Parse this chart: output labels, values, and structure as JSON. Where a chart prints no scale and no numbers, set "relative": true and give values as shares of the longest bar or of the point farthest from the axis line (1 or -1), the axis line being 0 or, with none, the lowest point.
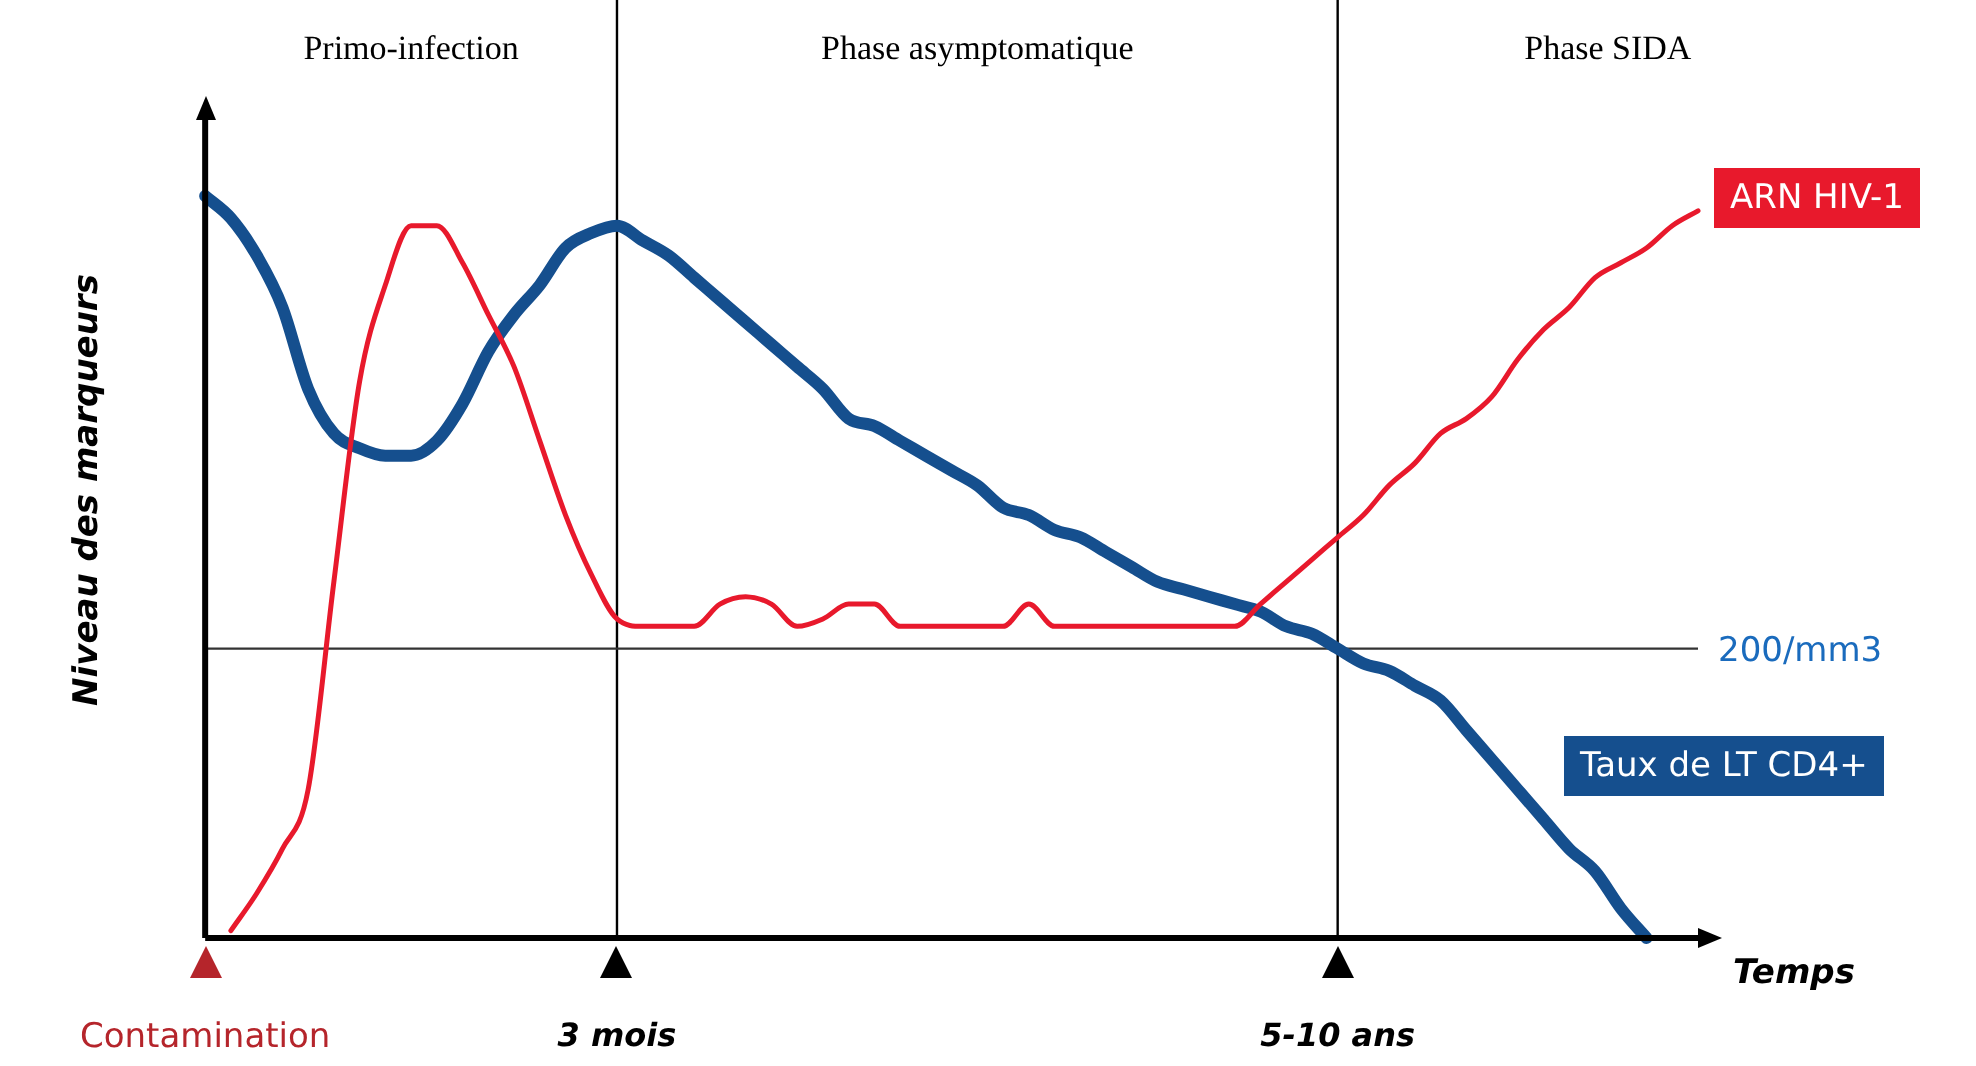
{
  "chart_data": {
    "type": "line",
    "relative": true,
    "xlabel": "Temps",
    "ylabel": "Niveau des marqueurs",
    "categories": [
      "Contamination",
      null,
      null,
      null,
      null,
      null,
      null,
      null,
      null,
      null,
      null,
      null,
      null,
      null,
      null,
      null,
      "3 mois",
      null,
      null,
      null,
      null,
      null,
      null,
      null,
      null,
      null,
      null,
      null,
      null,
      null,
      null,
      null,
      null,
      null,
      null,
      null,
      null,
      null,
      null,
      null,
      null,
      null,
      null,
      null,
      "5-10 ans",
      null,
      null,
      null,
      null,
      null,
      null,
      null,
      null,
      null,
      null,
      null,
      null,
      null,
      null
    ],
    "series": [
      {
        "name": "ARN HIV-1",
        "color": "#e8192c",
        "values": [
          null,
          0.01,
          0.06,
          0.12,
          0.2,
          0.48,
          0.75,
          0.88,
          0.96,
          0.96,
          0.91,
          0.84,
          0.77,
          0.67,
          0.57,
          0.49,
          0.43,
          0.42,
          0.42,
          0.42,
          0.45,
          0.46,
          0.45,
          0.42,
          0.43,
          0.45,
          0.45,
          0.42,
          0.42,
          0.42,
          0.42,
          0.42,
          0.45,
          0.42,
          0.42,
          0.42,
          0.42,
          0.42,
          0.42,
          0.42,
          0.42,
          0.45,
          0.48,
          0.51,
          0.54,
          0.57,
          0.61,
          0.64,
          0.68,
          0.7,
          0.73,
          0.78,
          0.82,
          0.85,
          0.89,
          0.91,
          0.93,
          0.96,
          0.98
        ]
      },
      {
        "name": "Taux de LT CD4+",
        "color": "#154f8e",
        "values": [
          1,
          0.97,
          0.92,
          0.85,
          0.74,
          0.68,
          0.66,
          0.65,
          0.65,
          0.67,
          0.72,
          0.79,
          0.84,
          0.88,
          0.93,
          0.95,
          0.96,
          0.94,
          0.92,
          0.89,
          0.86,
          0.83,
          0.8,
          0.77,
          0.74,
          0.7,
          0.69,
          0.67,
          0.65,
          0.63,
          0.61,
          0.58,
          0.57,
          0.55,
          0.54,
          0.52,
          0.5,
          0.48,
          0.47,
          0.46,
          0.45,
          0.44,
          0.42,
          0.41,
          0.39,
          0.37,
          0.36,
          0.34,
          0.32,
          0.28,
          0.24,
          0.2,
          0.16,
          0.12,
          0.09,
          0.04,
          0,
          null,
          null
        ]
      }
    ],
    "ref_lines": [
      {
        "axis": "x",
        "value": "3 mois"
      },
      {
        "axis": "x",
        "value": "5-10 ans"
      },
      {
        "axis": "y",
        "value": 0.39,
        "label": "200/mm3"
      }
    ],
    "annotations": [
      "Primo-infection",
      "Phase asymptomatique",
      "Phase SIDA"
    ]
  }
}
